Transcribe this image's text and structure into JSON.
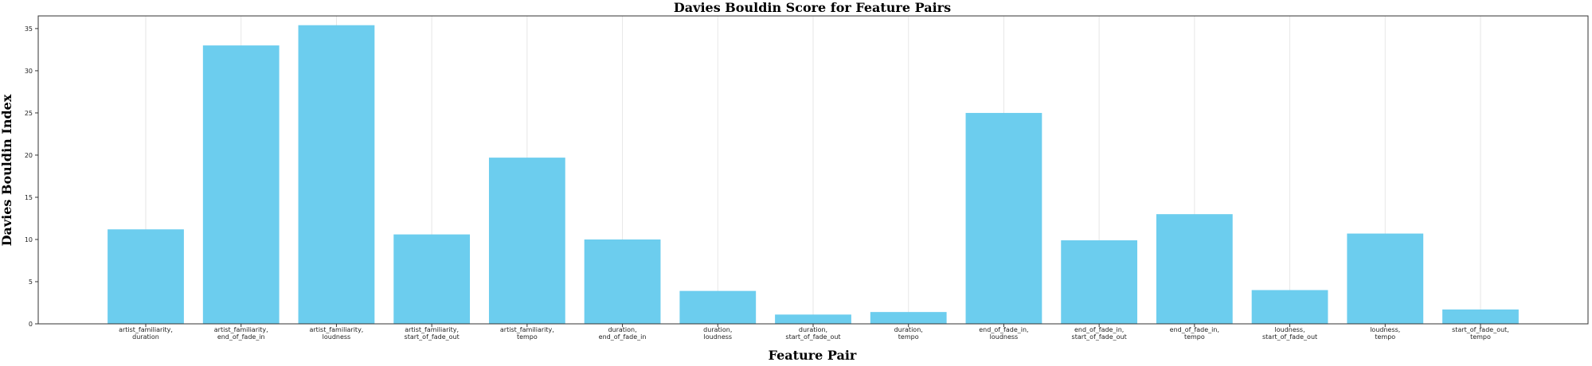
{
  "chart_data": {
    "type": "bar",
    "title": "Davies Bouldin Score for Feature Pairs",
    "xlabel": "Feature Pair",
    "ylabel": "Davies Bouldin Index",
    "categories": [
      [
        "artist_familiarity,",
        "duration"
      ],
      [
        "artist_familiarity,",
        "end_of_fade_in"
      ],
      [
        "artist_familiarity,",
        "loudness"
      ],
      [
        "artist_familiarity,",
        "start_of_fade_out"
      ],
      [
        "artist_familiarity,",
        "tempo"
      ],
      [
        "duration,",
        "end_of_fade_in"
      ],
      [
        "duration,",
        "loudness"
      ],
      [
        "duration,",
        "start_of_fade_out"
      ],
      [
        "duration,",
        "tempo"
      ],
      [
        "end_of_fade_in,",
        "loudness"
      ],
      [
        "end_of_fade_in,",
        "start_of_fade_out"
      ],
      [
        "end_of_fade_in,",
        "tempo"
      ],
      [
        "loudness,",
        "start_of_fade_out"
      ],
      [
        "loudness,",
        "tempo"
      ],
      [
        "start_of_fade_out,",
        "tempo"
      ]
    ],
    "values": [
      11.2,
      33.0,
      35.4,
      10.6,
      19.7,
      10.0,
      3.9,
      1.1,
      1.4,
      25.0,
      9.9,
      13.0,
      4.0,
      10.7,
      1.7
    ],
    "ylim": [
      0,
      36.5
    ],
    "yticks": [
      0,
      5,
      10,
      15,
      20,
      25,
      30,
      35
    ],
    "grid": "vertical",
    "bar_color": "#6ccdee",
    "grid_color": "#e6e6e6"
  }
}
